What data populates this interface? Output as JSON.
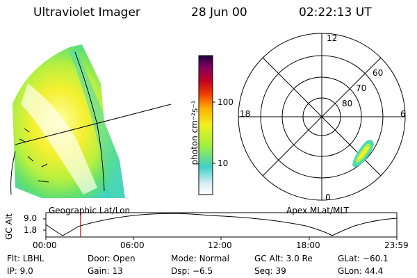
{
  "header": {
    "instrument": "Ultraviolet Imager",
    "date": "28 Jun 00",
    "time": "02:22:13 UT"
  },
  "panels": {
    "geo_label": "Geographic Lat/Lon",
    "apex_label": "Apex MLat/MLT"
  },
  "colorbar": {
    "unit_label": "photon cm⁻²s⁻¹",
    "ticks": [
      "100",
      "10"
    ],
    "colors": [
      "#ffffff",
      "#d8eef2",
      "#40d0c8",
      "#9ef040",
      "#f0f020",
      "#ffb000",
      "#f04000",
      "#c00020",
      "#800060",
      "#200040"
    ]
  },
  "polar": {
    "mlt_labels": {
      "top": "12",
      "left": "18",
      "right": "6",
      "bottom": "0"
    },
    "lat_labels": [
      "60",
      "70",
      "80"
    ]
  },
  "timeline": {
    "axis_label": "GC Alt",
    "y_ticks": [
      "9.0",
      "1.8"
    ],
    "x_ticks": [
      "00:00",
      "06:00",
      "12:00",
      "18:00",
      "23:59"
    ],
    "marker_color": "#c00000",
    "marker_time_fraction": 0.099
  },
  "info": {
    "row1": [
      {
        "label": "Flt:",
        "value": "LBHL"
      },
      {
        "label": "Door:",
        "value": "Open"
      },
      {
        "label": "Mode:",
        "value": "Normal"
      },
      {
        "label": "GC Alt:",
        "value": "3.0 Re"
      },
      {
        "label": "GLat:",
        "value": "−60.1"
      }
    ],
    "row2": [
      {
        "label": "IP:",
        "value": "9.0"
      },
      {
        "label": "Gain:",
        "value": "13"
      },
      {
        "label": "Dsp:",
        "value": "−6.5"
      },
      {
        "label": "Seq:",
        "value": "39"
      },
      {
        "label": "GLon:",
        "value": "44.4"
      }
    ]
  }
}
